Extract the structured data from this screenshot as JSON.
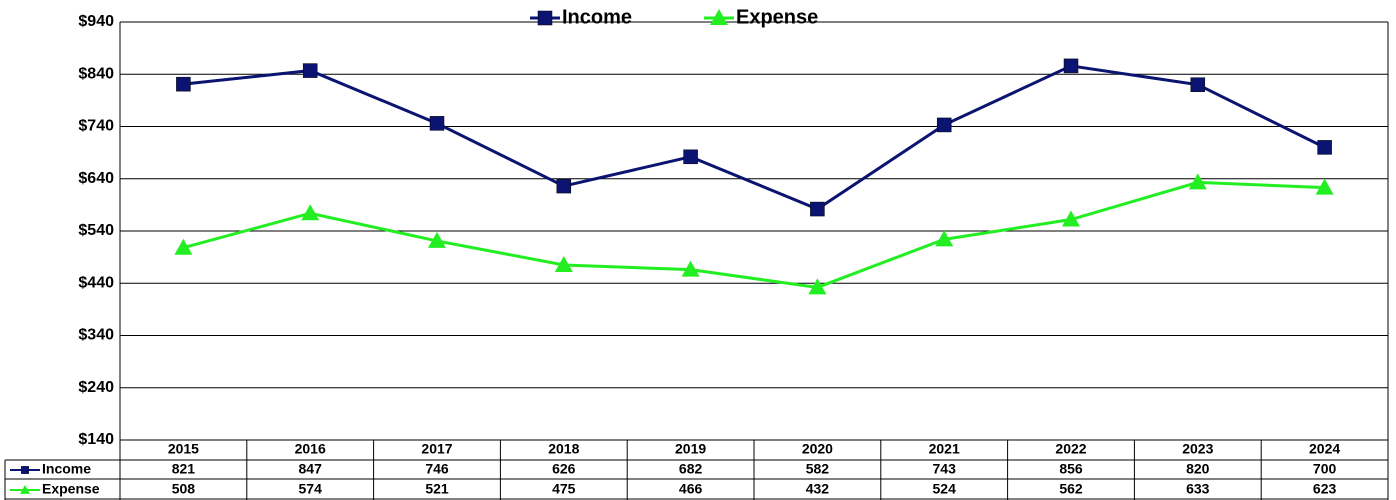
{
  "chart_data": {
    "type": "line",
    "categories": [
      "2015",
      "2016",
      "2017",
      "2018",
      "2019",
      "2020",
      "2021",
      "2022",
      "2023",
      "2024"
    ],
    "series": [
      {
        "name": "Income",
        "color": "#0b1470",
        "marker": "square",
        "values": [
          821,
          847,
          746,
          626,
          682,
          582,
          743,
          856,
          820,
          700
        ]
      },
      {
        "name": "Expense",
        "color": "#22ee22",
        "marker": "triangle",
        "values": [
          508,
          574,
          521,
          475,
          466,
          432,
          524,
          562,
          633,
          623
        ]
      }
    ],
    "ylim": [
      140,
      940
    ],
    "yticks": [
      {
        "value": 140,
        "label": "$140"
      },
      {
        "value": 240,
        "label": "$240"
      },
      {
        "value": 340,
        "label": "$340"
      },
      {
        "value": 440,
        "label": "$440"
      },
      {
        "value": 540,
        "label": "$540"
      },
      {
        "value": 640,
        "label": "$640"
      },
      {
        "value": 740,
        "label": "$740"
      },
      {
        "value": 840,
        "label": "$840"
      },
      {
        "value": 940,
        "label": "$940"
      }
    ],
    "grid": true,
    "legend": "top",
    "data_table": true
  }
}
